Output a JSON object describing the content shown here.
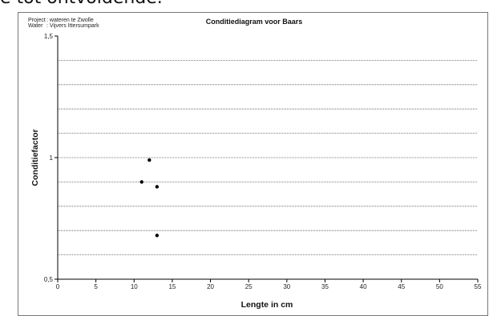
{
  "top_strip_text": "e tot ontvoldende.",
  "project": {
    "project_label": "Project",
    "project_value": ": wateren te Zwolle",
    "water_label": "Water",
    "water_value": ": Vijvers Ittersumpark"
  },
  "chart_data": {
    "type": "scatter",
    "title": "Conditiediagram voor Baars",
    "xlabel": "Lengte in cm",
    "ylabel": "Conditiefactor",
    "xlim": [
      0,
      55
    ],
    "ylim": [
      0.5,
      1.5
    ],
    "x_ticks": [
      0,
      5,
      10,
      15,
      20,
      25,
      30,
      35,
      40,
      45,
      50,
      55
    ],
    "x_tick_labels": [
      "0",
      "5",
      "10",
      "15",
      "20",
      "25",
      "30",
      "35",
      "40",
      "45",
      "50",
      "55"
    ],
    "y_tick_labels": [
      {
        "value": 0.5,
        "label": "0,5"
      },
      {
        "value": 1,
        "label": "1"
      },
      {
        "value": 1.5,
        "label": "1,5"
      }
    ],
    "gridlines_y": [
      0.6,
      0.7,
      0.8,
      0.9,
      1.0,
      1.1,
      1.2,
      1.3,
      1.4
    ],
    "grid": true,
    "grid_style": "dotted",
    "marker_color": "#000000",
    "points": [
      {
        "x": 12,
        "y": 0.99
      },
      {
        "x": 11,
        "y": 0.9
      },
      {
        "x": 13,
        "y": 0.88
      },
      {
        "x": 13,
        "y": 0.68
      }
    ]
  }
}
